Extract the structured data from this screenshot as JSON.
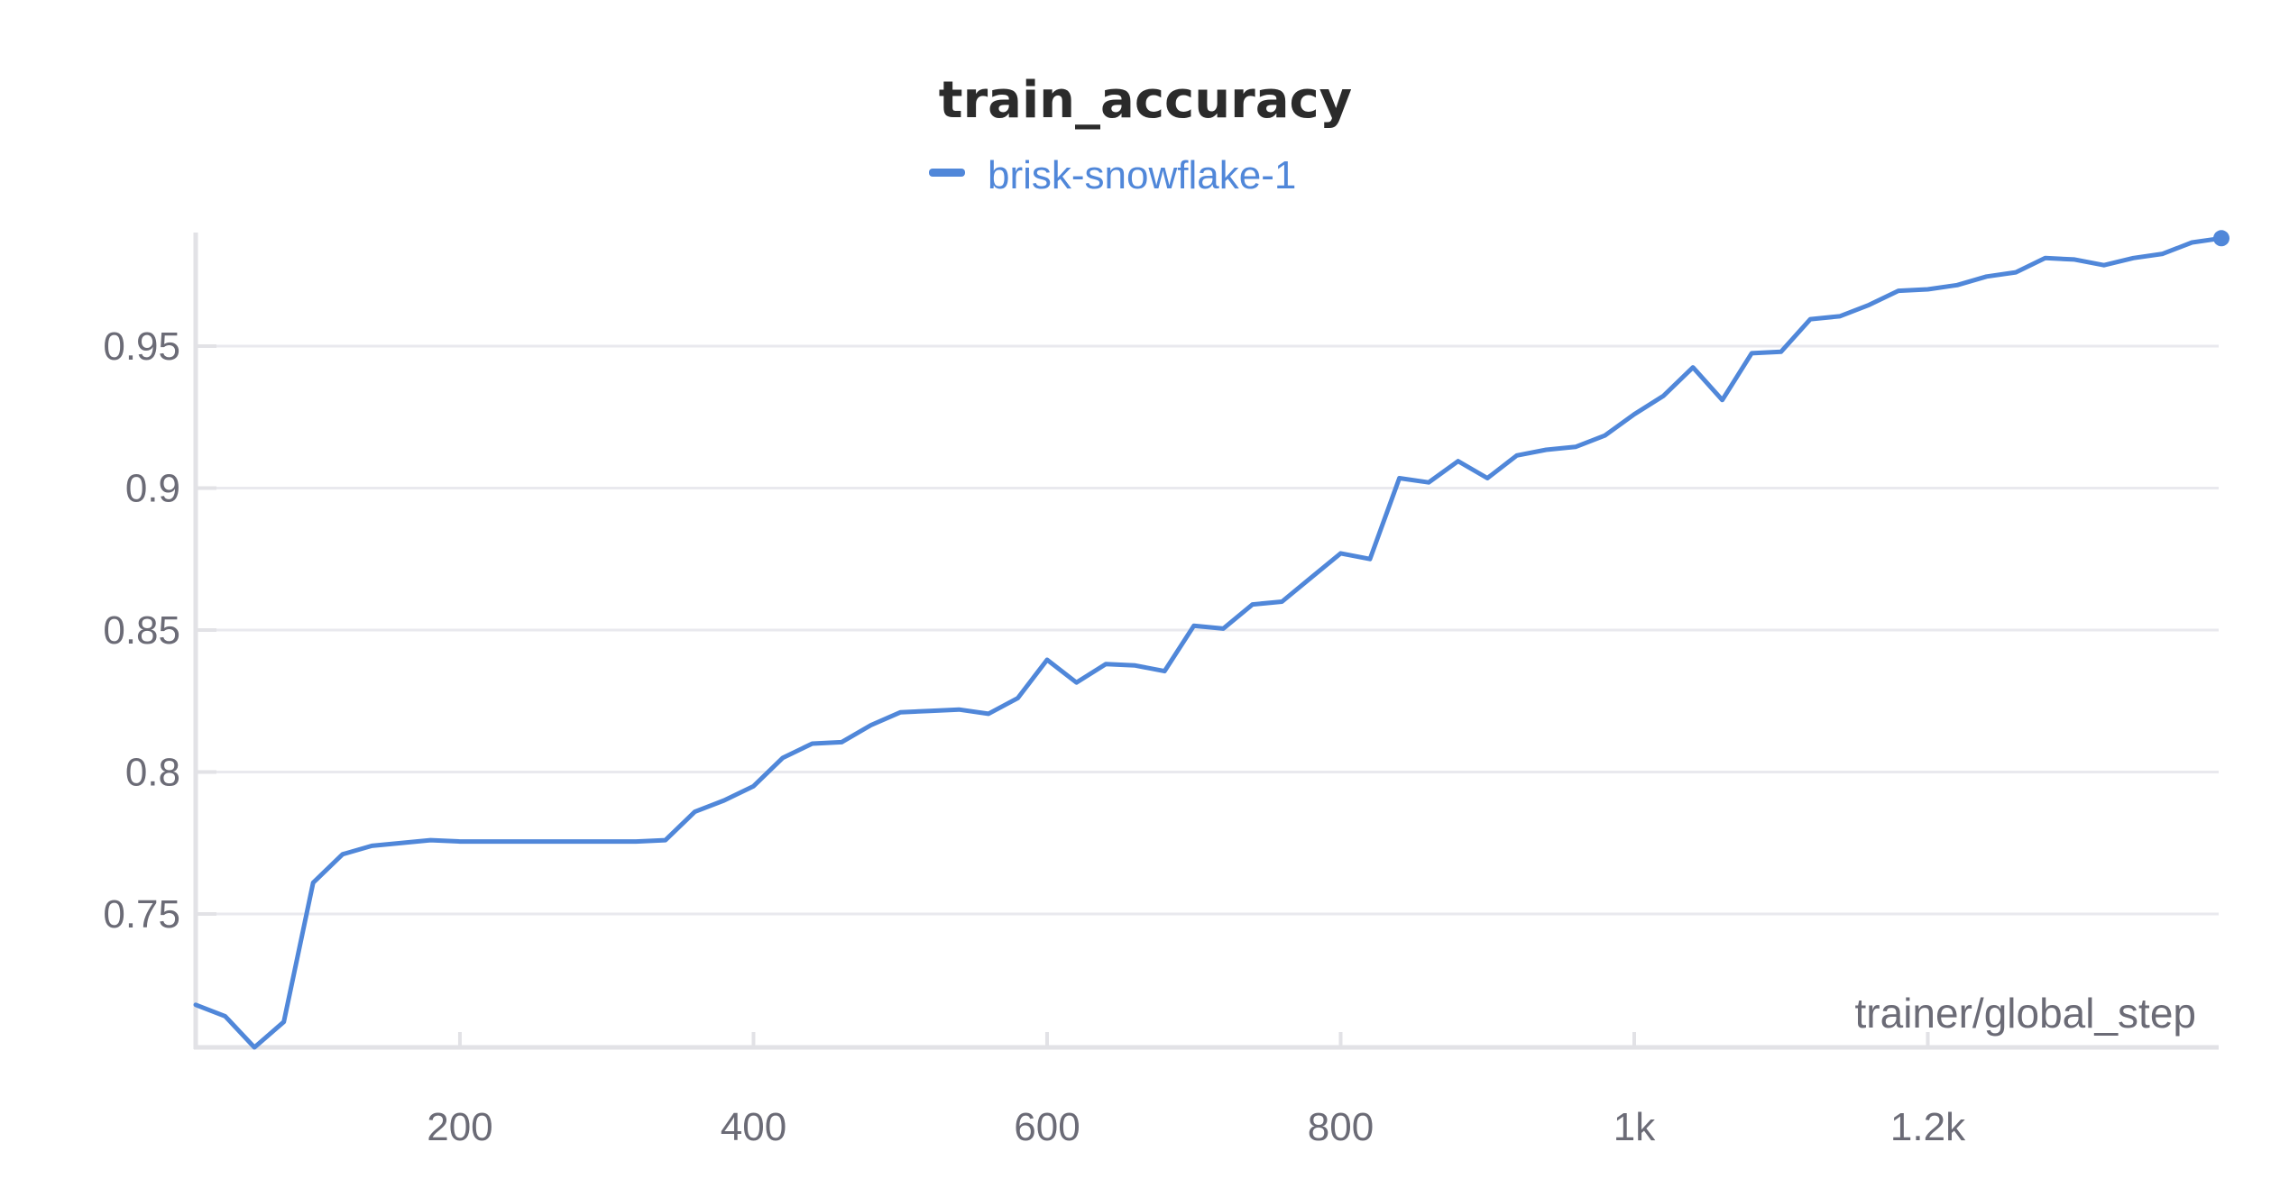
{
  "chart_data": {
    "type": "line",
    "title": "train_accuracy",
    "xlabel": "trainer/global_step",
    "ylabel": "",
    "xlim": [
      20,
      1400
    ],
    "ylim": [
      0.703,
      0.99
    ],
    "x_ticks": [
      200,
      400,
      600,
      800,
      1000,
      1200
    ],
    "x_tick_labels": [
      "200",
      "400",
      "600",
      "800",
      "1k",
      "1.2k"
    ],
    "y_ticks": [
      0.75,
      0.8,
      0.85,
      0.9,
      0.95
    ],
    "y_tick_labels": [
      "0.75",
      "0.8",
      "0.85",
      "0.9",
      "0.95"
    ],
    "grid": true,
    "legend_position": "top-center",
    "series": [
      {
        "name": "brisk-snowflake-1",
        "color": "#5087d9",
        "x": [
          20,
          40,
          60,
          80,
          100,
          120,
          140,
          160,
          180,
          200,
          220,
          240,
          260,
          280,
          300,
          320,
          340,
          360,
          380,
          400,
          420,
          440,
          460,
          480,
          500,
          520,
          540,
          560,
          580,
          600,
          620,
          640,
          660,
          680,
          700,
          720,
          740,
          760,
          780,
          800,
          820,
          840,
          860,
          880,
          900,
          920,
          940,
          960,
          980,
          1000,
          1020,
          1040,
          1060,
          1080,
          1100,
          1120,
          1140,
          1160,
          1180,
          1200,
          1220,
          1240,
          1260,
          1280,
          1300,
          1320,
          1340,
          1360,
          1380,
          1400
        ],
        "y": [
          0.718,
          0.714,
          0.703,
          0.712,
          0.761,
          0.771,
          0.774,
          0.775,
          0.776,
          0.7755,
          0.7755,
          0.7755,
          0.7755,
          0.7755,
          0.7755,
          0.7755,
          0.776,
          0.786,
          0.79,
          0.795,
          0.805,
          0.81,
          0.8105,
          0.8165,
          0.821,
          0.8215,
          0.822,
          0.8205,
          0.826,
          0.8395,
          0.8315,
          0.838,
          0.8375,
          0.8355,
          0.8515,
          0.8505,
          0.859,
          0.86,
          0.8685,
          0.877,
          0.875,
          0.9035,
          0.902,
          0.9095,
          0.9035,
          0.9115,
          0.9135,
          0.9145,
          0.9185,
          0.926,
          0.9325,
          0.9425,
          0.931,
          0.9475,
          0.948,
          0.9595,
          0.9605,
          0.9645,
          0.9695,
          0.97,
          0.9715,
          0.9745,
          0.976,
          0.981,
          0.9805,
          0.9785,
          0.981,
          0.9825,
          0.9865,
          0.988
        ]
      }
    ]
  }
}
